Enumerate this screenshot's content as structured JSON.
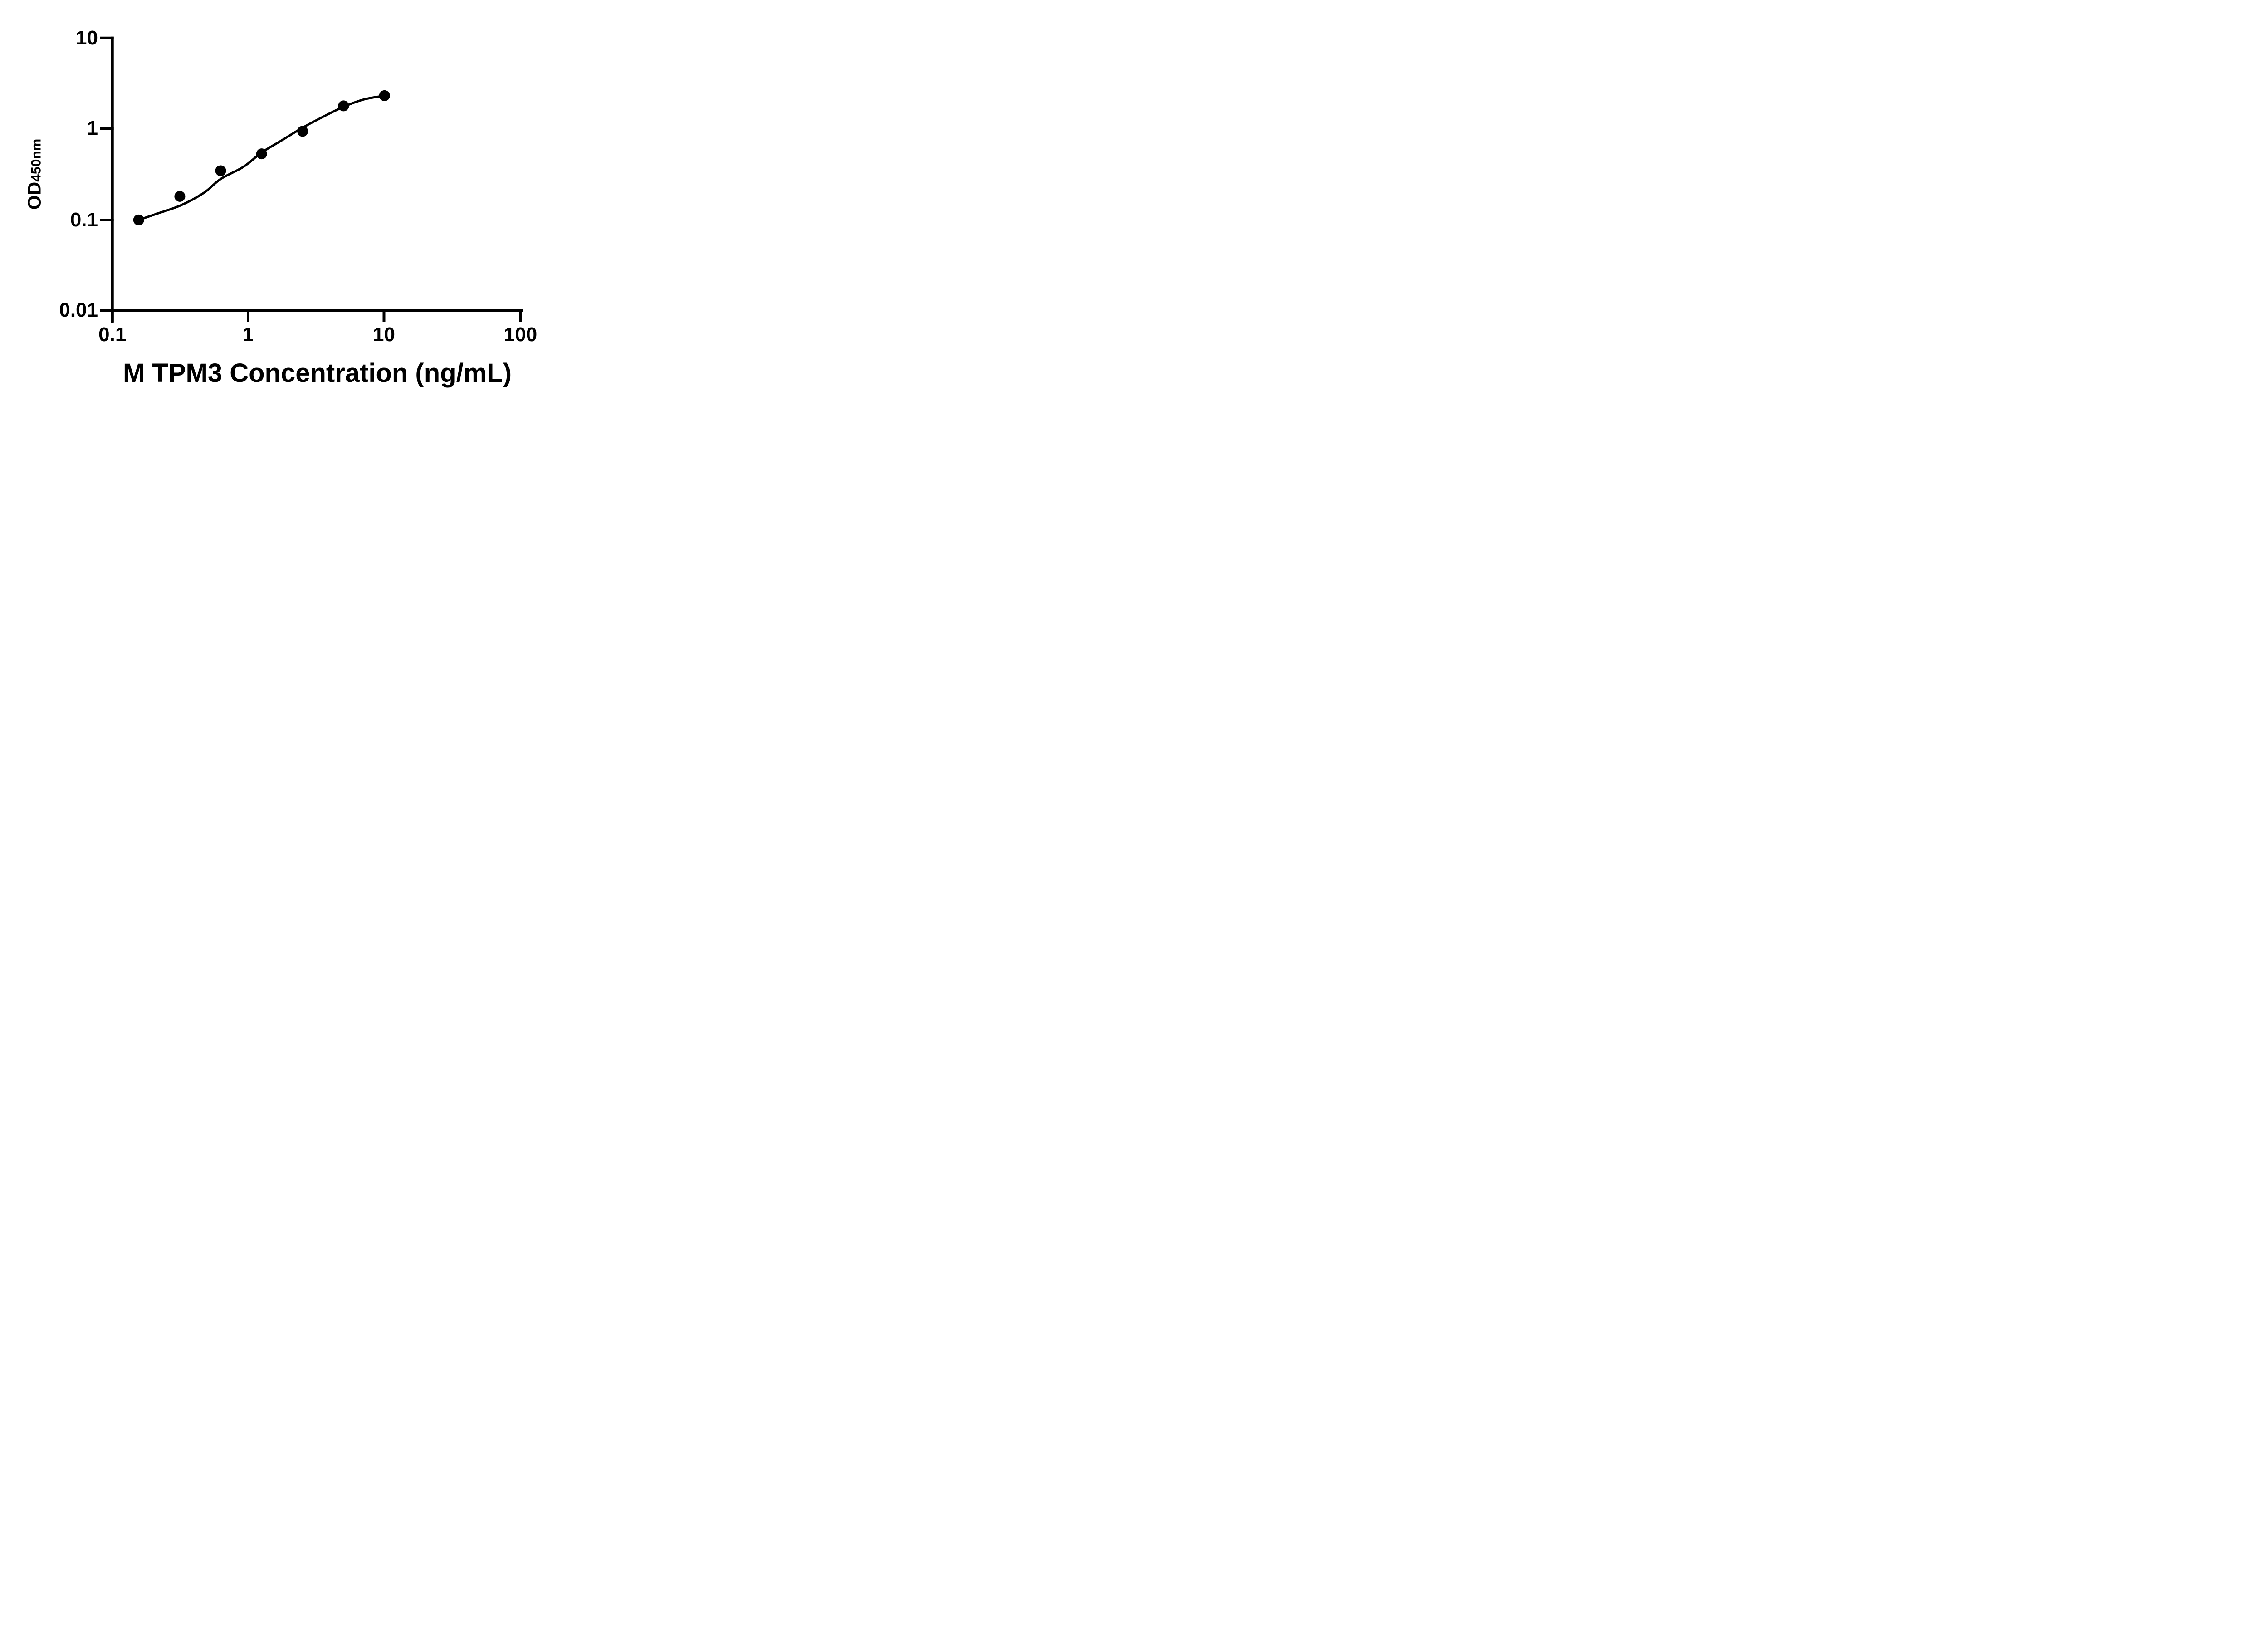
{
  "figure": {
    "background": "#ffffff",
    "foreground": "#000000"
  },
  "chart_data": {
    "type": "scatter",
    "title": "",
    "xlabel": "M TPM3 Concentration (ng/mL)",
    "ylabel_main": "OD",
    "ylabel_sub": "450nm",
    "x_scale": "log",
    "y_scale": "log",
    "xlim": [
      0.1,
      100
    ],
    "ylim": [
      0.01,
      10
    ],
    "x_tick_labels": [
      "0.1",
      "1",
      "10",
      "100"
    ],
    "y_tick_labels": [
      "10",
      "1",
      "0.1",
      "0.01"
    ],
    "grid": false,
    "legend": "none",
    "marker_color": "#000000",
    "line_color": "#000000",
    "points": [
      {
        "x": 0.156,
        "y": 0.099
      },
      {
        "x": 0.313,
        "y": 0.18
      },
      {
        "x": 0.625,
        "y": 0.345
      },
      {
        "x": 1.25,
        "y": 0.53
      },
      {
        "x": 2.5,
        "y": 0.94
      },
      {
        "x": 5,
        "y": 1.79
      },
      {
        "x": 10,
        "y": 2.32
      }
    ],
    "curve": [
      {
        "x": 0.156,
        "y": 0.099
      },
      {
        "x": 0.22,
        "y": 0.118
      },
      {
        "x": 0.32,
        "y": 0.144
      },
      {
        "x": 0.47,
        "y": 0.197
      },
      {
        "x": 0.625,
        "y": 0.28
      },
      {
        "x": 0.92,
        "y": 0.382
      },
      {
        "x": 1.25,
        "y": 0.548
      },
      {
        "x": 1.74,
        "y": 0.74
      },
      {
        "x": 2.5,
        "y": 1.03
      },
      {
        "x": 3.54,
        "y": 1.36
      },
      {
        "x": 5,
        "y": 1.75
      },
      {
        "x": 7.06,
        "y": 2.11
      },
      {
        "x": 10,
        "y": 2.32
      }
    ]
  }
}
